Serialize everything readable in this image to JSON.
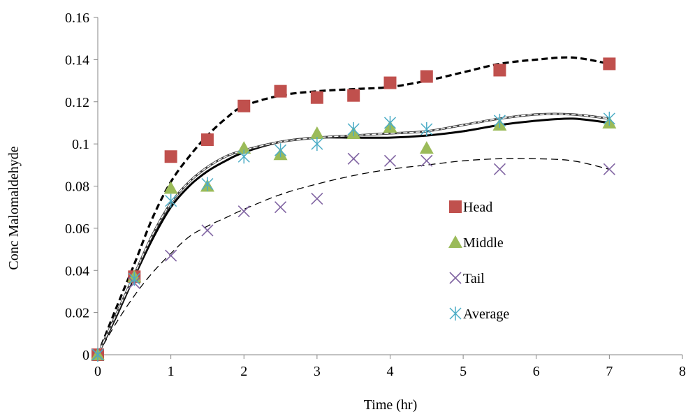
{
  "chart_data": {
    "type": "scatter",
    "title": "",
    "xlabel": "Time (hr)",
    "ylabel": "Conc Malomaldehyde",
    "xlim": [
      0,
      8
    ],
    "ylim": [
      0,
      0.16
    ],
    "x_ticks": [
      0,
      1,
      2,
      3,
      4,
      5,
      6,
      7,
      8
    ],
    "y_ticks": [
      0,
      0.02,
      0.04,
      0.06,
      0.08,
      0.1,
      0.12,
      0.14,
      0.16
    ],
    "grid": false,
    "legend_position": "center-right",
    "series": [
      {
        "name": "Head",
        "marker": "square",
        "color": "#c0504d",
        "x": [
          0,
          0.5,
          1,
          1.5,
          2,
          2.5,
          3,
          3.5,
          4,
          4.5,
          5.5,
          7
        ],
        "y": [
          0,
          0.037,
          0.094,
          0.102,
          0.118,
          0.125,
          0.122,
          0.123,
          0.129,
          0.132,
          0.135,
          0.138
        ]
      },
      {
        "name": "Middle",
        "marker": "triangle",
        "color": "#9bbb59",
        "x": [
          0,
          0.5,
          1,
          1.5,
          2,
          2.5,
          3,
          3.5,
          4,
          4.5,
          5.5,
          7
        ],
        "y": [
          0,
          0.037,
          0.079,
          0.08,
          0.098,
          0.095,
          0.105,
          0.105,
          0.108,
          0.098,
          0.109,
          0.11
        ]
      },
      {
        "name": "Tail",
        "marker": "x",
        "color": "#8064a2",
        "x": [
          0,
          0.5,
          1,
          1.5,
          2,
          2.5,
          3,
          3.5,
          4,
          4.5,
          5.5,
          7
        ],
        "y": [
          0,
          0.034,
          0.047,
          0.059,
          0.068,
          0.07,
          0.074,
          0.093,
          0.092,
          0.092,
          0.088,
          0.088
        ]
      },
      {
        "name": "Average",
        "marker": "asterisk",
        "color": "#4bacc6",
        "x": [
          0,
          0.5,
          1,
          1.5,
          2,
          2.5,
          3,
          3.5,
          4,
          4.5,
          5.5,
          7
        ],
        "y": [
          0,
          0.036,
          0.073,
          0.081,
          0.094,
          0.097,
          0.1,
          0.107,
          0.11,
          0.107,
          0.111,
          0.112
        ]
      }
    ],
    "trendlines": [
      {
        "for": "Head",
        "style": "bold-dashed",
        "x": [
          0,
          0.25,
          0.5,
          0.75,
          1,
          1.25,
          1.5,
          1.75,
          2,
          2.5,
          3,
          3.5,
          4,
          4.5,
          5,
          5.5,
          6,
          6.5,
          7
        ],
        "y": [
          0,
          0.022,
          0.043,
          0.065,
          0.082,
          0.094,
          0.104,
          0.112,
          0.118,
          0.123,
          0.125,
          0.126,
          0.127,
          0.13,
          0.134,
          0.138,
          0.14,
          0.141,
          0.138
        ]
      },
      {
        "for": "Middle",
        "style": "bold-solid",
        "x": [
          0,
          0.25,
          0.5,
          0.75,
          1,
          1.25,
          1.5,
          1.75,
          2,
          2.5,
          3,
          3.5,
          4,
          4.5,
          5,
          5.5,
          6,
          6.5,
          7
        ],
        "y": [
          0,
          0.018,
          0.037,
          0.055,
          0.07,
          0.08,
          0.087,
          0.092,
          0.096,
          0.101,
          0.103,
          0.103,
          0.103,
          0.104,
          0.106,
          0.109,
          0.111,
          0.112,
          0.11
        ]
      },
      {
        "for": "Tail",
        "style": "thin-dashed",
        "x": [
          0,
          0.25,
          0.5,
          0.75,
          1,
          1.25,
          1.5,
          1.75,
          2,
          2.5,
          3,
          3.5,
          4,
          4.5,
          5,
          5.5,
          6,
          6.5,
          7
        ],
        "y": [
          0,
          0.015,
          0.028,
          0.039,
          0.048,
          0.056,
          0.061,
          0.065,
          0.069,
          0.076,
          0.081,
          0.085,
          0.088,
          0.09,
          0.092,
          0.093,
          0.093,
          0.092,
          0.088
        ]
      },
      {
        "for": "Average",
        "style": "thin-double",
        "x": [
          0,
          0.25,
          0.5,
          0.75,
          1,
          1.25,
          1.5,
          1.75,
          2,
          2.5,
          3,
          3.5,
          4,
          4.5,
          5,
          5.5,
          6,
          6.5,
          7
        ],
        "y": [
          0,
          0.019,
          0.038,
          0.057,
          0.072,
          0.082,
          0.089,
          0.094,
          0.097,
          0.101,
          0.103,
          0.104,
          0.105,
          0.106,
          0.109,
          0.112,
          0.114,
          0.114,
          0.112
        ]
      }
    ]
  }
}
